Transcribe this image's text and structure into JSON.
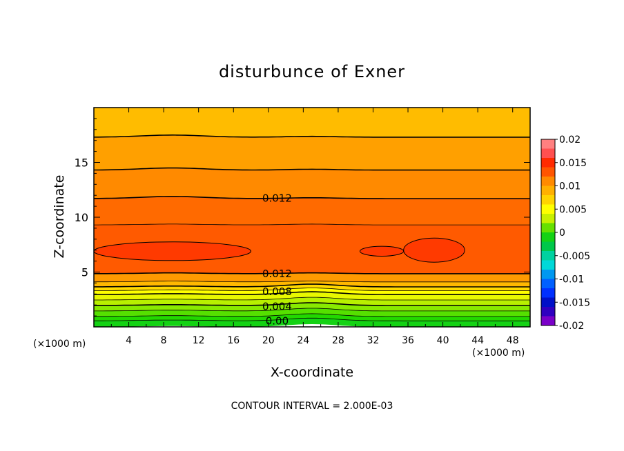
{
  "chart_data": {
    "type": "heatmap",
    "title": "disturbunce of Exner",
    "xlabel": "X-coordinate",
    "ylabel": "Z-coordinate",
    "x_unit_left": "(×1000 m)",
    "x_unit_right": "(×1000 m)",
    "xlim": [
      0,
      50
    ],
    "ylim": [
      0,
      20
    ],
    "xticks": [
      4,
      8,
      12,
      16,
      20,
      24,
      28,
      32,
      36,
      40,
      44,
      48
    ],
    "yticks": [
      5,
      10,
      15
    ],
    "colorbar": {
      "ticks": [
        "0.02",
        "0.015",
        "0.01",
        "0.005",
        "0",
        "-0.005",
        "-0.01",
        "-0.015",
        "-0.02"
      ],
      "range": [
        -0.02,
        0.02
      ],
      "colors": [
        "#ff8080",
        "#ff5050",
        "#ff2a00",
        "#ff5500",
        "#ff8a00",
        "#ffb000",
        "#ffd400",
        "#ffff00",
        "#c8f000",
        "#66e000",
        "#14d214",
        "#00c84a",
        "#00d2a0",
        "#00d8d8",
        "#0098f0",
        "#0060ff",
        "#0030ff",
        "#0010c8",
        "#3000c0",
        "#7a00c8"
      ]
    },
    "contour_interval_text": "CONTOUR INTERVAL = 2.000E-03",
    "contour_labels": [
      {
        "text": "0.012",
        "x": 21,
        "z": 11.7
      },
      {
        "text": "0.012",
        "x": 21,
        "z": 4.8
      },
      {
        "text": "0.008",
        "x": 21,
        "z": 3.1
      },
      {
        "text": "0.004",
        "x": 21,
        "z": 1.75
      },
      {
        "text": "0.00",
        "x": 21,
        "z": 0.45
      }
    ],
    "bands": [
      {
        "z": 0.0,
        "value": 0.0,
        "color": "#14d214"
      },
      {
        "z": 0.55,
        "value": 0.001,
        "color": "#22d800"
      },
      {
        "z": 0.95,
        "value": 0.002,
        "color": "#55e000"
      },
      {
        "z": 1.45,
        "value": 0.003,
        "color": "#88ea00"
      },
      {
        "z": 1.95,
        "value": 0.004,
        "color": "#b8f000"
      },
      {
        "z": 2.45,
        "value": 0.005,
        "color": "#e8f800"
      },
      {
        "z": 2.95,
        "value": 0.006,
        "color": "#ffff00"
      },
      {
        "z": 3.3,
        "value": 0.007,
        "color": "#ffd800"
      },
      {
        "z": 3.65,
        "value": 0.008,
        "color": "#ffb800"
      },
      {
        "z": 4.1,
        "value": 0.009,
        "color": "#ff9a00"
      },
      {
        "z": 4.85,
        "value": 0.012,
        "color": "#ff5a00"
      },
      {
        "z": 9.3,
        "value": 0.013,
        "color": "#ff6a00"
      },
      {
        "z": 11.7,
        "value": 0.012,
        "color": "#ff8a00"
      },
      {
        "z": 14.3,
        "value": 0.01,
        "color": "#ffa000"
      },
      {
        "z": 17.3,
        "value": 0.008,
        "color": "#ffbc00"
      }
    ],
    "core_regions": [
      {
        "x_center": 9.0,
        "z_center": 6.9,
        "x_halfwidth": 9.0,
        "z_halfheight": 0.85,
        "value": 0.014,
        "color": "#ff3a00"
      },
      {
        "x_center": 33.0,
        "z_center": 6.9,
        "x_halfwidth": 2.5,
        "z_halfheight": 0.45,
        "value": 0.014,
        "color": "#ff3a00"
      },
      {
        "x_center": 39.0,
        "z_center": 7.0,
        "x_halfwidth": 3.5,
        "z_halfheight": 1.1,
        "value": 0.014,
        "color": "#ff3a00"
      }
    ]
  }
}
